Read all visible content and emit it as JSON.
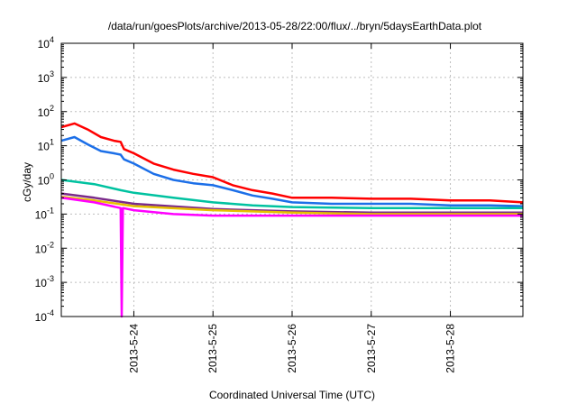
{
  "chart_data": {
    "type": "line",
    "title": "/data/run/goesPlots/archive/2013-05-28/22:00/flux/../bryn/5daysEarthData.plot",
    "xlabel": "Coordinated Universal Time (UTC)",
    "ylabel": "cGy/day",
    "y_scale": "log",
    "ylim": [
      0.0001,
      10000
    ],
    "xlim": [
      "2013-05-23 02:00",
      "2013-05-28 22:00"
    ],
    "x_ticks": [
      "2013-5-24",
      "2013-5-25",
      "2013-5-26",
      "2013-5-27",
      "2013-5-28"
    ],
    "y_ticks": [
      {
        "base": "10",
        "exp": "-4",
        "value": 0.0001
      },
      {
        "base": "10",
        "exp": "-3",
        "value": 0.001
      },
      {
        "base": "10",
        "exp": "-2",
        "value": 0.01
      },
      {
        "base": "10",
        "exp": "-1",
        "value": 0.1
      },
      {
        "base": "10",
        "exp": "0",
        "value": 1
      },
      {
        "base": "10",
        "exp": "1",
        "value": 10
      },
      {
        "base": "10",
        "exp": "2",
        "value": 100
      },
      {
        "base": "10",
        "exp": "3",
        "value": 1000
      },
      {
        "base": "10",
        "exp": "4",
        "value": 10000
      }
    ],
    "grid": true,
    "legend": "none",
    "series": [
      {
        "color": "#ff0000",
        "x": [
          "2013-05-23 02:00",
          "2013-05-23 06:00",
          "2013-05-23 10:00",
          "2013-05-23 14:00",
          "2013-05-23 18:00",
          "2013-05-23 20:00",
          "2013-05-23 21:00",
          "2013-05-24 00:00",
          "2013-05-24 06:00",
          "2013-05-24 12:00",
          "2013-05-24 18:00",
          "2013-05-25 00:00",
          "2013-05-25 06:00",
          "2013-05-25 12:00",
          "2013-05-25 18:00",
          "2013-05-26 00:00",
          "2013-05-26 12:00",
          "2013-05-27 00:00",
          "2013-05-27 12:00",
          "2013-05-28 00:00",
          "2013-05-28 12:00",
          "2013-05-28 22:00"
        ],
        "y": [
          35,
          45,
          30,
          18,
          14,
          13,
          8,
          6,
          3,
          2,
          1.5,
          1.2,
          0.7,
          0.5,
          0.4,
          0.3,
          0.3,
          0.28,
          0.28,
          0.25,
          0.25,
          0.22
        ]
      },
      {
        "color": "#1c6fe8",
        "x": [
          "2013-05-23 02:00",
          "2013-05-23 06:00",
          "2013-05-23 10:00",
          "2013-05-23 14:00",
          "2013-05-23 18:00",
          "2013-05-23 20:00",
          "2013-05-23 21:00",
          "2013-05-24 00:00",
          "2013-05-24 06:00",
          "2013-05-24 12:00",
          "2013-05-24 18:00",
          "2013-05-25 00:00",
          "2013-05-25 06:00",
          "2013-05-25 12:00",
          "2013-05-25 18:00",
          "2013-05-26 00:00",
          "2013-05-26 12:00",
          "2013-05-27 00:00",
          "2013-05-27 12:00",
          "2013-05-28 00:00",
          "2013-05-28 12:00",
          "2013-05-28 22:00"
        ],
        "y": [
          14,
          18,
          11,
          7,
          6,
          5.5,
          4,
          3,
          1.5,
          1,
          0.8,
          0.7,
          0.5,
          0.35,
          0.28,
          0.22,
          0.2,
          0.2,
          0.2,
          0.18,
          0.18,
          0.17
        ]
      },
      {
        "color": "#00c2a0",
        "x": [
          "2013-05-23 02:00",
          "2013-05-23 12:00",
          "2013-05-23 20:00",
          "2013-05-24 00:00",
          "2013-05-24 12:00",
          "2013-05-25 00:00",
          "2013-05-25 12:00",
          "2013-05-26 00:00",
          "2013-05-27 00:00",
          "2013-05-28 00:00",
          "2013-05-28 22:00"
        ],
        "y": [
          1.0,
          0.75,
          0.5,
          0.42,
          0.3,
          0.22,
          0.18,
          0.16,
          0.15,
          0.15,
          0.15
        ]
      },
      {
        "color": "#7a2a8a",
        "x": [
          "2013-05-23 02:00",
          "2013-05-23 12:00",
          "2013-05-24 00:00",
          "2013-05-25 00:00",
          "2013-05-26 00:00",
          "2013-05-27 00:00",
          "2013-05-28 00:00",
          "2013-05-28 22:00"
        ],
        "y": [
          0.4,
          0.3,
          0.2,
          0.14,
          0.12,
          0.11,
          0.11,
          0.11
        ]
      },
      {
        "color": "#e6c000",
        "x": [
          "2013-05-23 02:00",
          "2013-05-23 12:00",
          "2013-05-24 00:00",
          "2013-05-25 00:00",
          "2013-05-26 00:00",
          "2013-05-27 00:00",
          "2013-05-28 00:00",
          "2013-05-28 22:00"
        ],
        "y": [
          0.32,
          0.25,
          0.17,
          0.13,
          0.11,
          0.1,
          0.1,
          0.1
        ]
      },
      {
        "color": "#ff00ff",
        "x": [
          "2013-05-23 02:00",
          "2013-05-23 12:00",
          "2013-05-23 20:00",
          "2013-05-23 20:20",
          "2013-05-23 20:40",
          "2013-05-24 00:00",
          "2013-05-24 12:00",
          "2013-05-25 00:00",
          "2013-05-26 00:00",
          "2013-05-27 00:00",
          "2013-05-28 00:00",
          "2013-05-28 22:00"
        ],
        "y": [
          0.3,
          0.22,
          0.15,
          0.0001,
          0.15,
          0.13,
          0.1,
          0.09,
          0.09,
          0.09,
          0.09,
          0.09
        ]
      }
    ]
  }
}
